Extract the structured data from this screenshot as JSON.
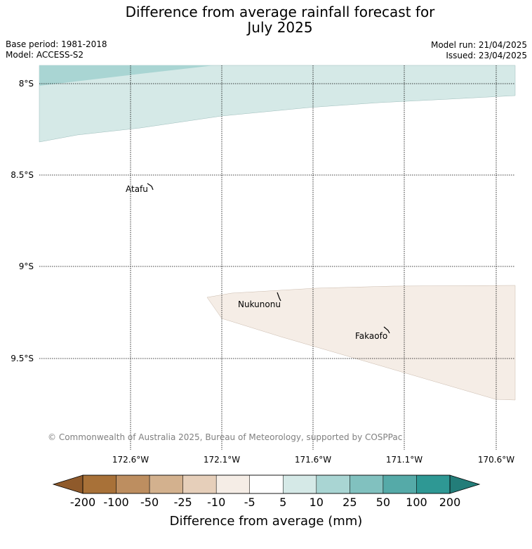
{
  "title_line1": "Difference from average rainfall forecast for",
  "title_line2": "July 2025",
  "base_period": "Base period: 1981-2018",
  "model": "Model: ACCESS-S2",
  "model_run": "Model run: 21/04/2025",
  "issued": "Issued: 23/04/2025",
  "lat_labels": [
    "8°S",
    "8.5°S",
    "9°S",
    "9.5°S"
  ],
  "lon_labels": [
    "172.6°W",
    "172.1°W",
    "171.6°W",
    "171.1°W",
    "170.6°W"
  ],
  "islands": [
    "Atafu",
    "Nukunonu",
    "Fakaofo"
  ],
  "copyright": "© Commonwealth of Australia 2025, Bureau of Meteorology, supported by COSPPac",
  "colorbar": {
    "label": "Difference from average (mm)",
    "ticks": [
      "-200",
      "-100",
      "-50",
      "-25",
      "-10",
      "-5",
      "5",
      "10",
      "25",
      "50",
      "100",
      "200"
    ],
    "colors": [
      "#a87138",
      "#bd8e60",
      "#d3b18e",
      "#e6cfba",
      "#f5ede6",
      "#ffffff",
      "#d5e9e7",
      "#a9d5d3",
      "#81c1bf",
      "#55aaa8",
      "#2e9894"
    ],
    "under_color": "#8f5a2b",
    "over_color": "#237d79"
  }
}
